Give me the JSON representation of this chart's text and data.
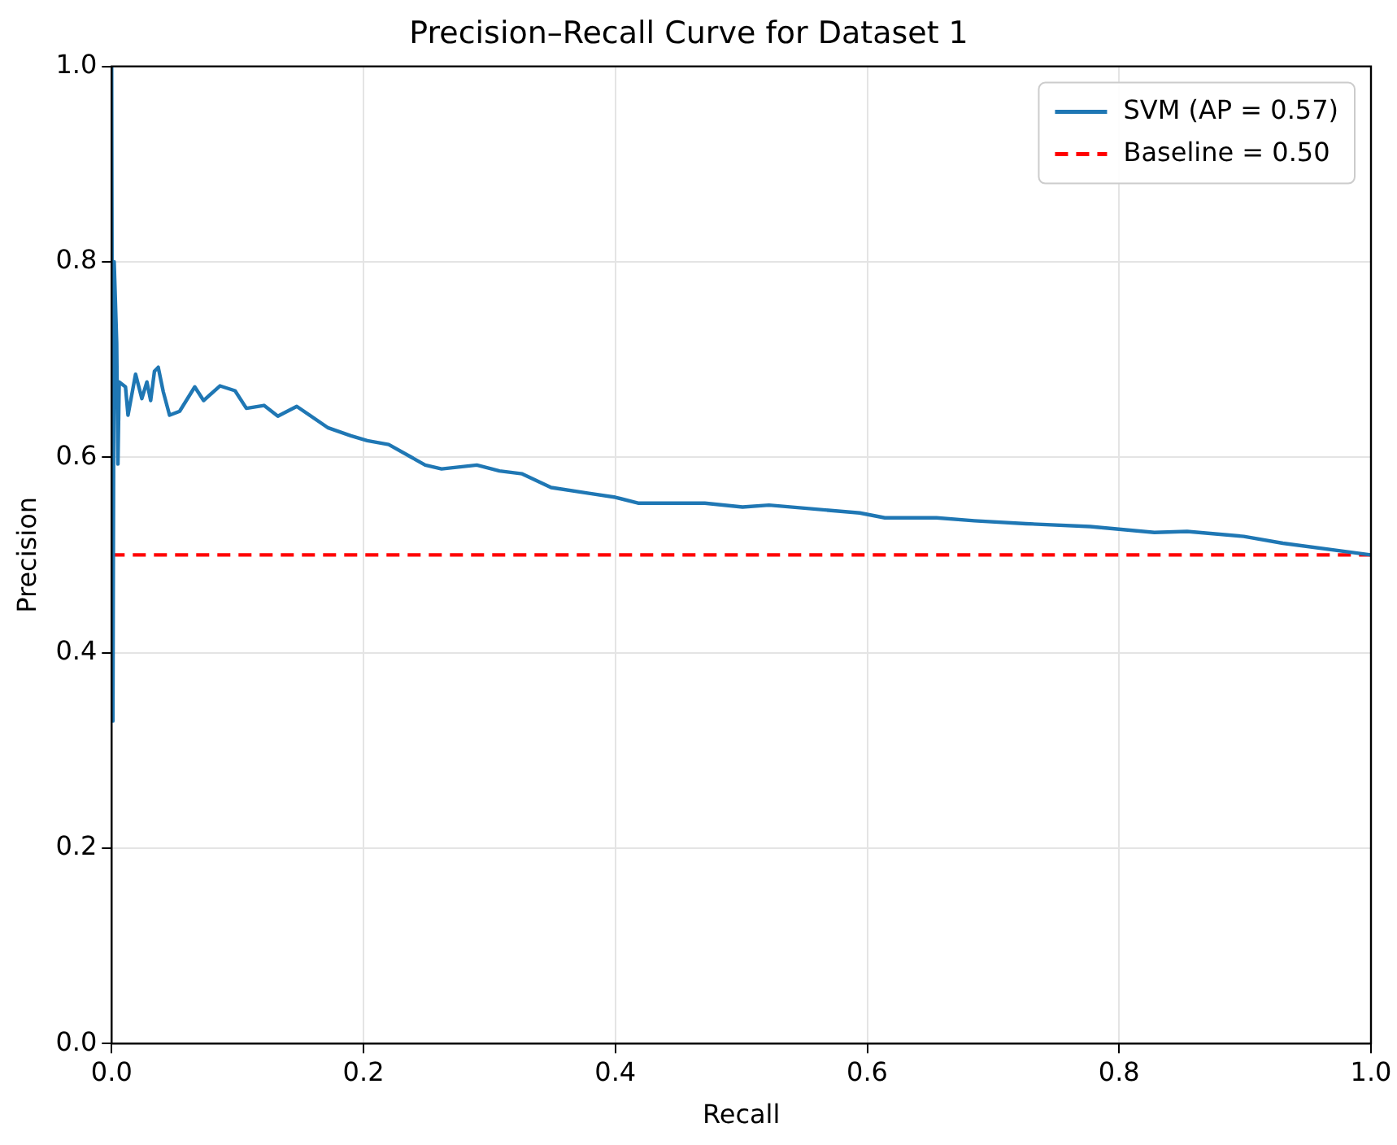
{
  "chart_data": {
    "type": "line",
    "title": "Precision–Recall Curve for Dataset 1",
    "xlabel": "Recall",
    "ylabel": "Precision",
    "series": [
      {
        "name": "SVM (AP = 0.57)",
        "color": "#1f77b4",
        "x": [
          0,
          0.001,
          0.002,
          0.004,
          0.005,
          0.006,
          0.011,
          0.013,
          0.019,
          0.024,
          0.028,
          0.031,
          0.034,
          0.037,
          0.041,
          0.046,
          0.054,
          0.066,
          0.073,
          0.086,
          0.098,
          0.107,
          0.121,
          0.132,
          0.147,
          0.172,
          0.19,
          0.203,
          0.22,
          0.238,
          0.249,
          0.262,
          0.29,
          0.308,
          0.326,
          0.349,
          0.379,
          0.4,
          0.418,
          0.471,
          0.501,
          0.522,
          0.594,
          0.614,
          0.655,
          0.685,
          0.726,
          0.777,
          0.828,
          0.854,
          0.899,
          0.93,
          1.0
        ],
        "values": [
          1.0,
          0.33,
          0.8,
          0.717,
          0.593,
          0.677,
          0.672,
          0.643,
          0.685,
          0.66,
          0.677,
          0.658,
          0.688,
          0.692,
          0.667,
          0.643,
          0.647,
          0.672,
          0.658,
          0.673,
          0.668,
          0.65,
          0.653,
          0.642,
          0.652,
          0.63,
          0.622,
          0.617,
          0.613,
          0.6,
          0.592,
          0.588,
          0.592,
          0.586,
          0.583,
          0.569,
          0.563,
          0.559,
          0.553,
          0.553,
          0.549,
          0.551,
          0.543,
          0.538,
          0.538,
          0.535,
          0.532,
          0.529,
          0.523,
          0.524,
          0.519,
          0.512,
          0.5
        ]
      }
    ],
    "ref_lines": [
      {
        "axis": "y",
        "value": 0.5,
        "label": "Baseline = 0.50",
        "color": "#ff0000",
        "line_style": "dashed"
      }
    ],
    "xlim": [
      0,
      1
    ],
    "ylim": [
      0,
      1
    ],
    "xticks": [
      {
        "value": 0,
        "label": "0.0"
      },
      {
        "value": 0.2,
        "label": "0.2"
      },
      {
        "value": 0.4,
        "label": "0.4"
      },
      {
        "value": 0.6,
        "label": "0.6"
      },
      {
        "value": 0.8,
        "label": "0.8"
      },
      {
        "value": 1,
        "label": "1.0"
      }
    ],
    "yticks": [
      {
        "value": 0,
        "label": "0.0"
      },
      {
        "value": 0.2,
        "label": "0.2"
      },
      {
        "value": 0.4,
        "label": "0.4"
      },
      {
        "value": 0.6,
        "label": "0.6"
      },
      {
        "value": 0.8,
        "label": "0.8"
      },
      {
        "value": 1,
        "label": "1.0"
      }
    ],
    "grid": true,
    "legend": "top right",
    "marker": "none",
    "line_style": "solid"
  }
}
